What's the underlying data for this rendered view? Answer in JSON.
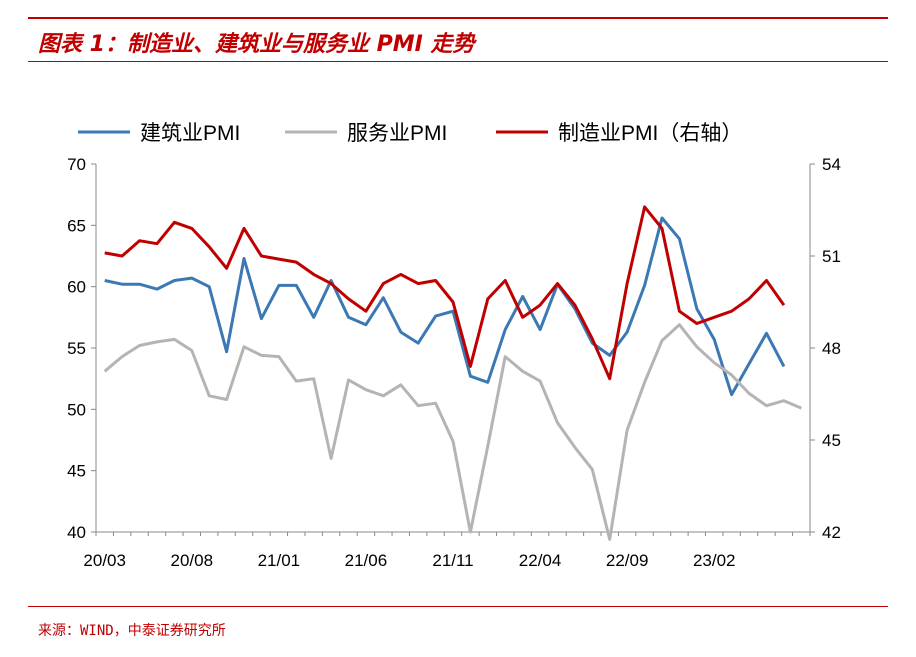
{
  "header": {
    "title": "图表 1：制造业、建筑业与服务业 PMI 走势"
  },
  "footer": {
    "source": "来源：WIND，中泰证券研究所"
  },
  "chart_data": {
    "type": "line",
    "title": "图表 1：制造业、建筑业与服务业 PMI 走势",
    "x_tick_labels": [
      "20/03",
      "20/08",
      "21/01",
      "21/06",
      "21/11",
      "22/04",
      "22/09",
      "23/02"
    ],
    "categories": [
      "20/03",
      "20/04",
      "20/05",
      "20/06",
      "20/07",
      "20/08",
      "20/09",
      "20/10",
      "20/11",
      "20/12",
      "21/01",
      "21/02",
      "21/03",
      "21/04",
      "21/05",
      "21/06",
      "21/07",
      "21/08",
      "21/09",
      "21/10",
      "21/11",
      "21/12",
      "22/01",
      "22/02",
      "22/03",
      "22/04",
      "22/05",
      "22/06",
      "22/07",
      "22/08",
      "22/09",
      "22/10",
      "22/11",
      "22/12",
      "23/01",
      "23/02",
      "23/03",
      "23/04",
      "23/05",
      "23/06",
      "23/07"
    ],
    "left_axis": {
      "ylim": [
        40,
        70
      ],
      "ticks": [
        "40",
        "45",
        "50",
        "55",
        "60",
        "65",
        "70"
      ]
    },
    "right_axis": {
      "ylim": [
        42,
        54
      ],
      "ticks": [
        "42",
        "45",
        "48",
        "51",
        "54"
      ]
    },
    "series": [
      {
        "name": "建筑业PMI",
        "axis": "left",
        "color": "#3b78b4",
        "values": [
          60.5,
          60.2,
          60.2,
          59.8,
          60.5,
          60.7,
          60.0,
          54.7,
          62.3,
          57.4,
          60.1,
          60.1,
          57.5,
          60.5,
          57.5,
          56.9,
          59.1,
          56.3,
          55.4,
          57.6,
          58.0,
          52.7,
          52.2,
          56.5,
          59.2,
          56.5,
          60.2,
          58.2,
          55.4,
          54.4,
          56.3,
          60.1,
          65.6,
          63.9,
          58.2,
          55.7,
          51.2,
          53.7,
          56.2,
          53.5,
          null
        ]
      },
      {
        "name": "服务业PMI",
        "axis": "left",
        "color": "#b4b4b4",
        "values": [
          53.1,
          54.3,
          55.2,
          55.5,
          55.7,
          54.8,
          51.1,
          50.8,
          55.1,
          54.4,
          54.3,
          52.3,
          52.5,
          46.0,
          52.4,
          51.6,
          51.1,
          52.0,
          50.3,
          50.5,
          47.4,
          40.0,
          47.0,
          54.3,
          53.1,
          52.3,
          48.9,
          46.9,
          45.1,
          39.4,
          48.3,
          52.2,
          55.6,
          56.9,
          55.1,
          53.8,
          52.8,
          51.3,
          50.3,
          50.7,
          50.1
        ]
      },
      {
        "name": "制造业PMI（右轴）",
        "axis": "right",
        "color": "#c00000",
        "values": [
          51.1,
          51.0,
          51.5,
          51.4,
          52.1,
          51.9,
          51.3,
          50.6,
          51.9,
          51.0,
          50.9,
          50.8,
          50.4,
          50.1,
          49.6,
          49.2,
          50.1,
          50.4,
          50.1,
          50.2,
          49.5,
          47.4,
          49.6,
          50.2,
          49.0,
          49.4,
          50.1,
          49.4,
          48.3,
          47.0,
          50.1,
          52.6,
          51.9,
          49.2,
          48.8,
          49.0,
          49.2,
          49.6,
          50.2,
          49.4,
          null
        ]
      }
    ],
    "legend": {
      "placement": "top",
      "entries": [
        "建筑业PMI",
        "服务业PMI",
        "制造业PMI（右轴）"
      ]
    },
    "grid": false
  }
}
